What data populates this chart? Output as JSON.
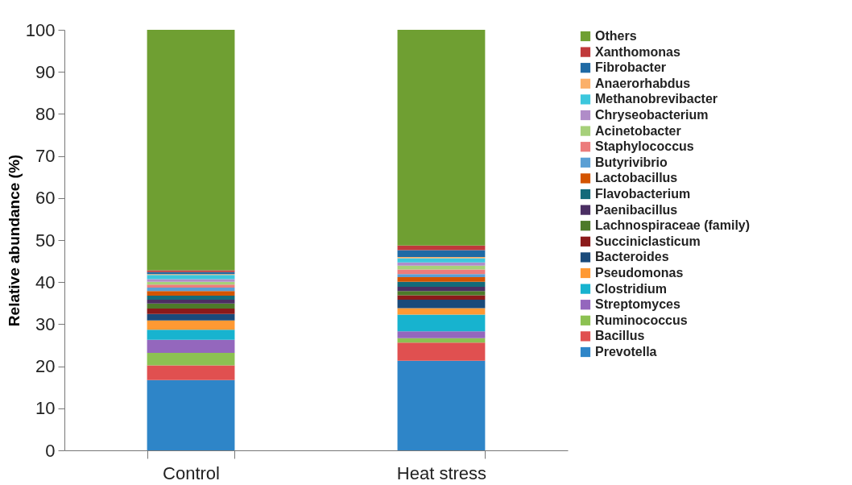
{
  "chart_data": {
    "type": "bar",
    "stacked": true,
    "ylabel": "Relative abundance (%)",
    "categories": [
      "Control",
      "Heat stress"
    ],
    "ylim": [
      0,
      100
    ],
    "yticks": [
      0,
      10,
      20,
      30,
      40,
      50,
      60,
      70,
      80,
      90,
      100
    ],
    "grid": false,
    "legend": "right",
    "series": [
      {
        "name": "Prevotella",
        "color": "#2e85c8",
        "values": [
          16.7,
          21.3
        ]
      },
      {
        "name": "Bacillus",
        "color": "#e05050",
        "values": [
          3.5,
          4.3
        ]
      },
      {
        "name": "Ruminococcus",
        "color": "#8cc152",
        "values": [
          3.0,
          1.1
        ]
      },
      {
        "name": "Streptomyces",
        "color": "#9467bd",
        "values": [
          3.1,
          1.6
        ]
      },
      {
        "name": "Clostridium",
        "color": "#17b3cf",
        "values": [
          2.4,
          4.0
        ]
      },
      {
        "name": "Pseudomonas",
        "color": "#ff9933",
        "values": [
          2.2,
          1.5
        ]
      },
      {
        "name": "Bacteroides",
        "color": "#1a4a7a",
        "values": [
          1.5,
          2.0
        ]
      },
      {
        "name": "Succiniclasticum",
        "color": "#8b1a1a",
        "values": [
          1.3,
          1.1
        ]
      },
      {
        "name": "Lachnospiraceae (family)",
        "color": "#4d7a2a",
        "values": [
          1.2,
          1.0
        ]
      },
      {
        "name": "Paenibacillus",
        "color": "#4b2e63",
        "values": [
          0.9,
          1.0
        ]
      },
      {
        "name": "Flavobacterium",
        "color": "#136a7a",
        "values": [
          1.0,
          1.2
        ]
      },
      {
        "name": "Lactobacillus",
        "color": "#d35400",
        "values": [
          1.1,
          1.1
        ]
      },
      {
        "name": "Butyrivibrio",
        "color": "#5a9fd4",
        "values": [
          0.8,
          0.7
        ]
      },
      {
        "name": "Staphylococcus",
        "color": "#ec7c7c",
        "values": [
          0.7,
          1.1
        ]
      },
      {
        "name": "Acinetobacter",
        "color": "#a6d07a",
        "values": [
          0.7,
          0.9
        ]
      },
      {
        "name": "Chryseobacterium",
        "color": "#b08cc8",
        "values": [
          0.6,
          0.8
        ]
      },
      {
        "name": "Methanobrevibacter",
        "color": "#3cc7dd",
        "values": [
          1.0,
          1.0
        ]
      },
      {
        "name": "Anaerorhabdus",
        "color": "#fbb06a",
        "values": [
          0.2,
          0.3
        ]
      },
      {
        "name": "Fibrobacter",
        "color": "#1f6aa5",
        "values": [
          0.5,
          1.6
        ]
      },
      {
        "name": "Xanthomonas",
        "color": "#c0393b",
        "values": [
          0.4,
          1.1
        ]
      },
      {
        "name": "Others",
        "color": "#6f9f32",
        "values": [
          57.2,
          51.3
        ]
      }
    ]
  }
}
